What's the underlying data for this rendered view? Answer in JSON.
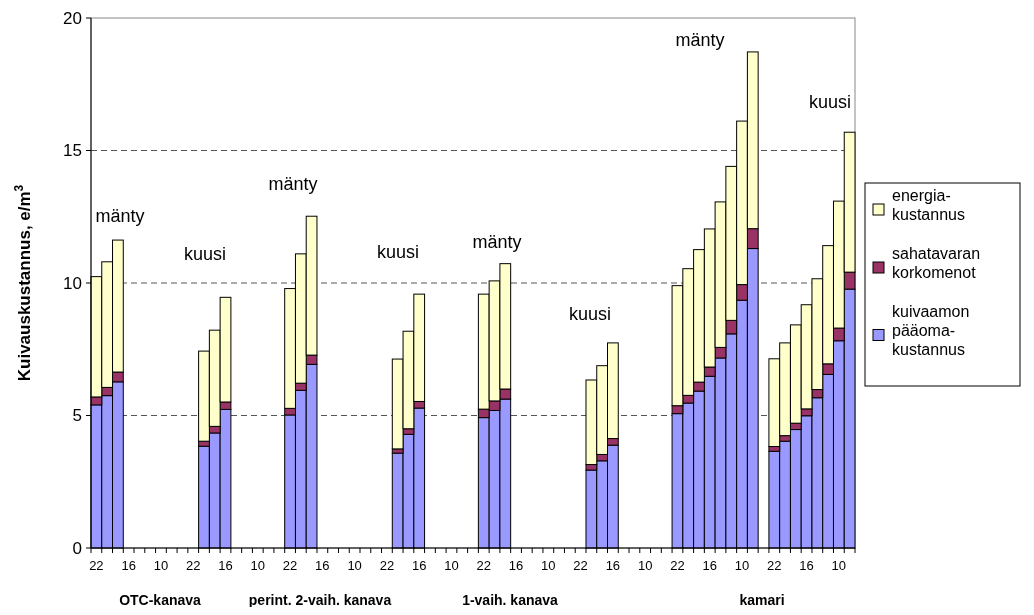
{
  "chart_data": {
    "type": "bar",
    "stacked": true,
    "ylabel": "Kuivauskustannus, e/m$^{3}$",
    "categories": [
      "22",
      null,
      null,
      "16",
      null,
      null,
      "10",
      null,
      null,
      "22",
      null,
      null,
      "16",
      null,
      null,
      "10",
      null,
      null,
      "22",
      null,
      null,
      "16",
      null,
      null,
      "10",
      null,
      null,
      "22",
      null,
      null,
      "16",
      null,
      null,
      "10",
      null,
      null,
      "22",
      null,
      null,
      "16",
      null,
      null,
      "10",
      null,
      null,
      "22",
      null,
      null,
      "16",
      null,
      null,
      "10",
      null,
      null,
      "22",
      null,
      null,
      "16",
      null,
      null,
      "10",
      null,
      null,
      "22",
      null,
      null,
      "16",
      null,
      null,
      "10",
      null
    ],
    "series": [
      {
        "name": "kuivaamon pääoma-kustannus",
        "color": "#9999ff",
        "values": [
          5.4,
          5.75,
          6.27,
          null,
          null,
          null,
          null,
          null,
          null,
          null,
          3.84,
          4.34,
          5.23,
          null,
          null,
          null,
          null,
          null,
          5.02,
          5.95,
          6.93,
          null,
          null,
          null,
          null,
          null,
          null,
          null,
          3.58,
          4.29,
          5.28,
          null,
          null,
          null,
          null,
          null,
          4.92,
          5.19,
          5.62,
          null,
          null,
          null,
          null,
          null,
          null,
          null,
          2.94,
          3.29,
          3.88,
          null,
          null,
          null,
          null,
          null,
          5.07,
          5.47,
          5.92,
          6.48,
          7.17,
          8.08,
          9.35,
          11.3,
          null,
          3.65,
          4.03,
          4.47,
          4.99,
          5.67,
          6.55,
          7.82,
          9.77
        ]
      },
      {
        "name": "sahatavaran korkomenot",
        "color": "#993366",
        "values": [
          0.3,
          0.31,
          0.37,
          null,
          null,
          null,
          null,
          null,
          null,
          null,
          0.19,
          0.25,
          0.28,
          null,
          null,
          null,
          null,
          null,
          0.25,
          0.27,
          0.35,
          null,
          null,
          null,
          null,
          null,
          null,
          null,
          0.16,
          0.21,
          0.25,
          null,
          null,
          null,
          null,
          null,
          0.32,
          0.36,
          0.38,
          null,
          null,
          null,
          null,
          null,
          null,
          null,
          0.21,
          0.24,
          0.25,
          null,
          null,
          null,
          null,
          null,
          0.3,
          0.29,
          0.34,
          0.35,
          0.4,
          0.51,
          0.59,
          0.75,
          null,
          0.18,
          0.21,
          0.24,
          0.26,
          0.31,
          0.4,
          0.48,
          0.64
        ]
      },
      {
        "name": "energia-kustannus",
        "color": "#ffffcc",
        "values": [
          4.54,
          4.74,
          4.98,
          null,
          null,
          null,
          null,
          null,
          null,
          null,
          3.4,
          3.63,
          3.95,
          null,
          null,
          null,
          null,
          null,
          4.52,
          4.88,
          5.24,
          null,
          null,
          null,
          null,
          null,
          null,
          null,
          3.39,
          3.68,
          4.05,
          null,
          null,
          null,
          null,
          null,
          4.34,
          4.53,
          4.73,
          null,
          null,
          null,
          null,
          null,
          null,
          null,
          3.19,
          3.35,
          3.61,
          null,
          null,
          null,
          null,
          null,
          4.53,
          4.78,
          5.0,
          5.21,
          5.49,
          5.81,
          6.17,
          6.67,
          null,
          3.31,
          3.5,
          3.71,
          3.93,
          4.18,
          4.46,
          4.79,
          5.28
        ]
      }
    ],
    "ylim": [
      0,
      20
    ],
    "yticks": [
      0,
      5,
      10,
      15,
      20
    ],
    "grid": "y",
    "legend": "right",
    "annotations": [
      "mänty",
      "kuusi",
      "mänty",
      "kuusi",
      "mänty",
      "kuusi",
      "mänty",
      "kuusi",
      "OTC-kanava",
      "perint. 2-vaih. kanava",
      "1-vaih. kanava",
      "kamari"
    ]
  }
}
